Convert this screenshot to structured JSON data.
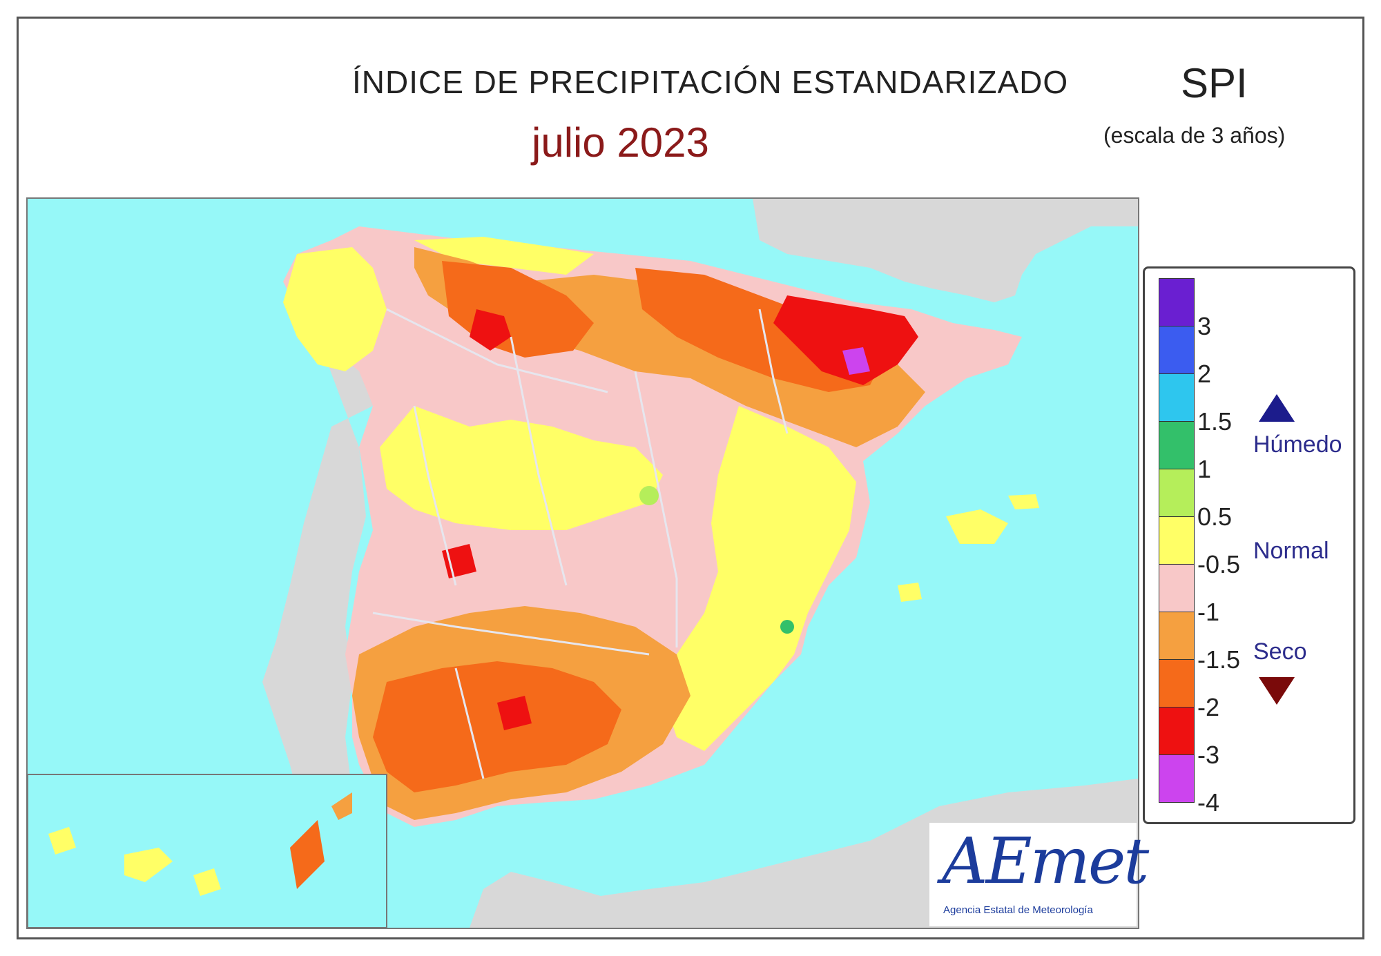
{
  "header": {
    "title": "ÍNDICE DE PRECIPITACIÓN ESTANDARIZADO",
    "period": "julio  2023",
    "index": "SPI",
    "scale": "(escala de 3 años)"
  },
  "legend": {
    "colors": [
      "#6a1fd1",
      "#3b5cf0",
      "#2ec6ee",
      "#33c06a",
      "#b5ee5a",
      "#ffff66",
      "#f8c8c8",
      "#f5a040",
      "#f56a1a",
      "#ee1111",
      "#cc44ee"
    ],
    "ticks": [
      "3",
      "2",
      "1.5",
      "1",
      "0.5",
      "-0.5",
      "-1",
      "-1.5",
      "-2",
      "-3",
      "-4"
    ],
    "categories": {
      "wet": "Húmedo",
      "normal": "Normal",
      "dry": "Seco"
    }
  },
  "colors": {
    "sea": "#96f8f8",
    "land_outside": "#d8d8d8",
    "border": "#e6e6ee"
  },
  "logo": {
    "text": "AEmet",
    "subtitle": "Agencia Estatal de Meteorología"
  }
}
